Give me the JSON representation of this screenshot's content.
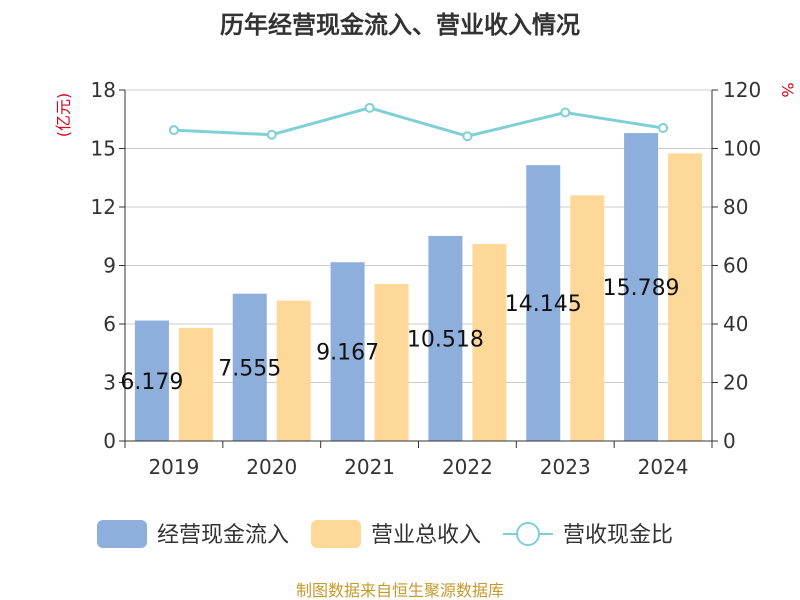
{
  "chart_data": {
    "type": "bar",
    "title": "历年经营现金流入、营业收入情况",
    "categories": [
      "2019",
      "2020",
      "2021",
      "2022",
      "2023",
      "2024"
    ],
    "y_left": {
      "unit": "(亿元)",
      "ticks": [
        0,
        3,
        6,
        9,
        12,
        15,
        18
      ],
      "ylim": [
        0,
        18
      ]
    },
    "y_right": {
      "unit": "%",
      "ticks": [
        0,
        20,
        40,
        60,
        80,
        100,
        120
      ],
      "ylim": [
        0,
        120
      ]
    },
    "series": [
      {
        "name": "经营现金流入",
        "type": "bar",
        "axis": "left",
        "color": "#8eaedb",
        "values": [
          6.179,
          7.555,
          9.167,
          10.518,
          14.145,
          15.789
        ],
        "labels": [
          "6.179",
          "7.555",
          "9.167",
          "10.518",
          "14.145",
          "15.789"
        ]
      },
      {
        "name": "营业总收入",
        "type": "bar",
        "axis": "left",
        "color": "#fdd899",
        "values": [
          5.8,
          7.2,
          8.05,
          10.1,
          12.6,
          14.75
        ]
      },
      {
        "name": "营收现金比",
        "type": "line",
        "axis": "right",
        "color": "#7fd0d6",
        "values": [
          106.3,
          104.7,
          113.9,
          104.2,
          112.3,
          107.0
        ]
      }
    ],
    "grid": true,
    "legend": "bottom"
  },
  "source": "制图数据来自恒生聚源数据库"
}
